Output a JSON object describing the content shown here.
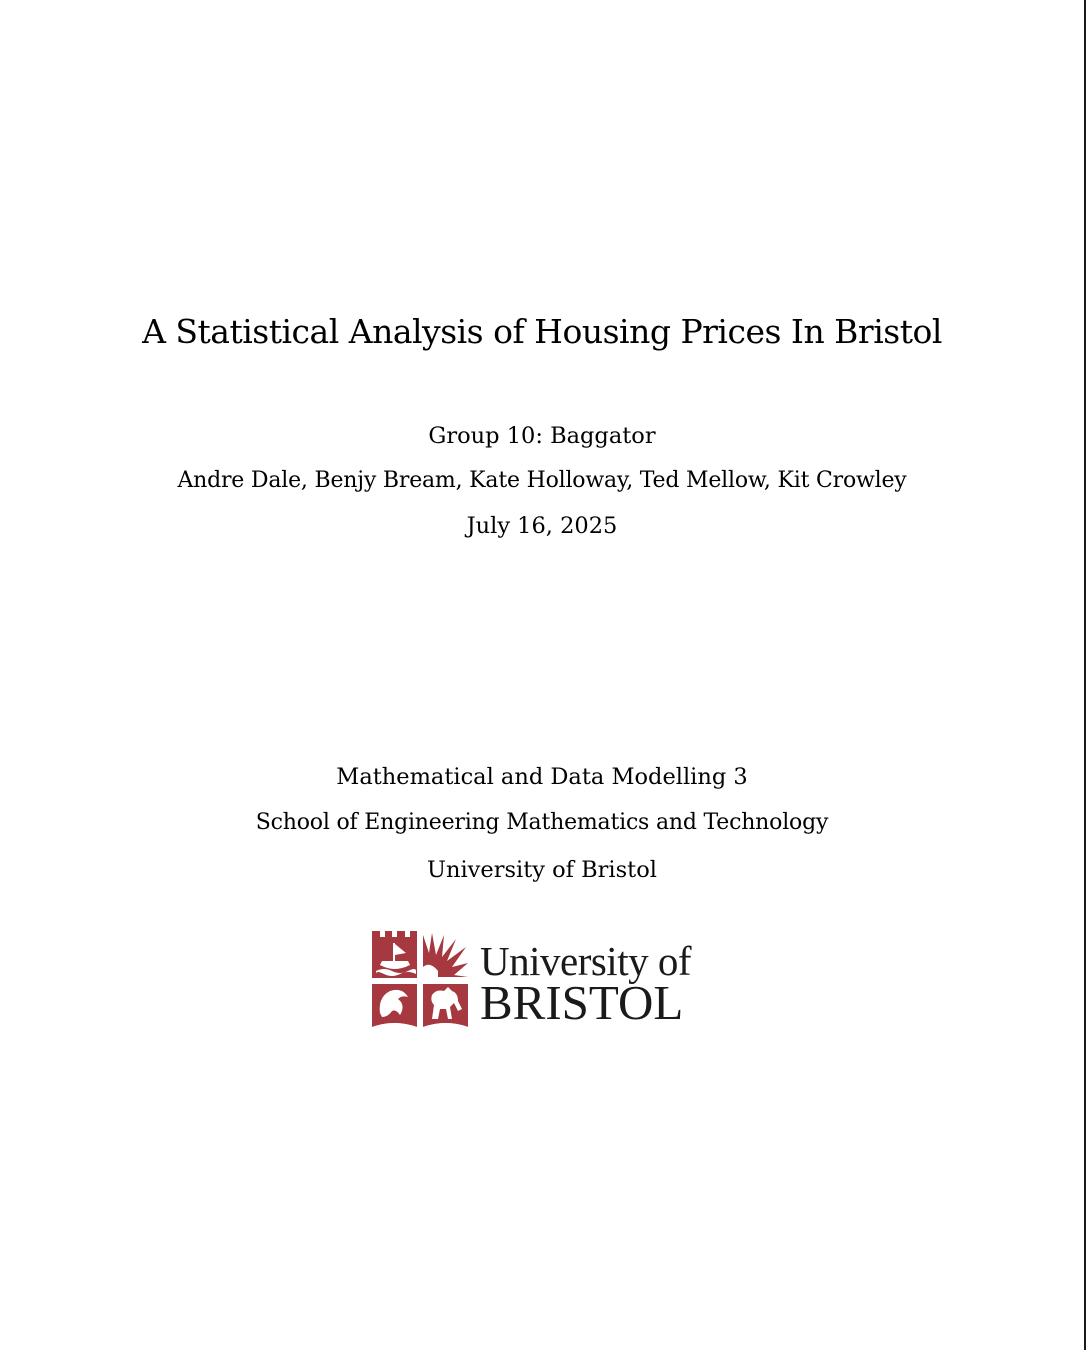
{
  "document": {
    "title": "A Statistical Analysis of Housing Prices In Bristol",
    "group": "Group 10: Baggator",
    "authors": "Andre Dale, Benjy Bream, Kate Holloway, Ted Mellow, Kit Crowley",
    "date": "July 16, 2025",
    "course": "Mathematical and Data Modelling 3",
    "school": "School of Engineering Mathematics and Technology",
    "university": "University of Bristol"
  },
  "logo": {
    "icon": "university-of-bristol-crest-icon",
    "line1": "University of",
    "line2": "BRISTOL",
    "crest_color": "#a6383f",
    "text_color": "#1a1a1a"
  }
}
